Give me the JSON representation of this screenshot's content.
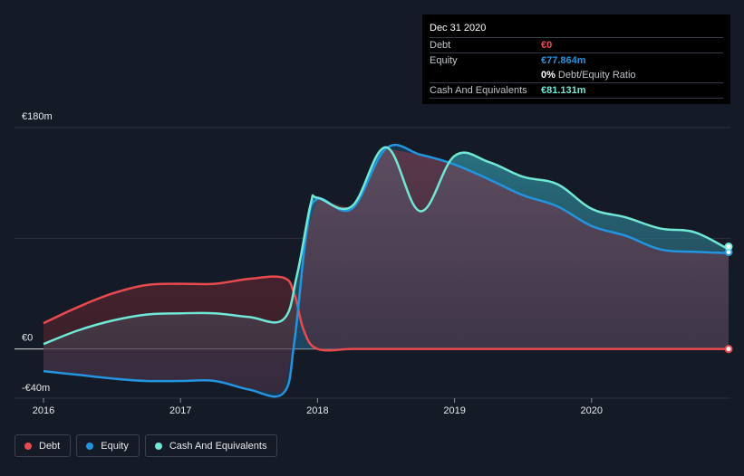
{
  "tooltip": {
    "date": "Dec 31 2020",
    "debt_label": "Debt",
    "debt_value": "€0",
    "equity_label": "Equity",
    "equity_value": "€77.864m",
    "ratio_value": "0%",
    "ratio_label": "Debt/Equity Ratio",
    "cash_label": "Cash And Equivalents",
    "cash_value": "€81.131m"
  },
  "legend": {
    "debt": "Debt",
    "equity": "Equity",
    "cash": "Cash And Equivalents"
  },
  "colors": {
    "debt": "#e84a4f",
    "equity": "#2394df",
    "cash": "#71e7d6",
    "background": "#151b26"
  },
  "chart_data": {
    "type": "area",
    "title": "",
    "xlabel": "",
    "ylabel": "",
    "ylim": [
      -40,
      180
    ],
    "y_ticks": [
      {
        "value": 180,
        "label": "€180m"
      },
      {
        "value": 0,
        "label": "€0"
      },
      {
        "value": -40,
        "label": "-€40m"
      }
    ],
    "x_ticks": [
      {
        "value": 2016,
        "label": "2016"
      },
      {
        "value": 2017,
        "label": "2017"
      },
      {
        "value": 2018,
        "label": "2018"
      },
      {
        "value": 2019,
        "label": "2019"
      },
      {
        "value": 2020,
        "label": "2020"
      }
    ],
    "xlim": [
      2015.78,
      2021.0
    ],
    "series": [
      {
        "name": "Debt",
        "key": "debt",
        "x": [
          2016.0,
          2016.25,
          2016.5,
          2016.75,
          2017.0,
          2017.25,
          2017.5,
          2017.75,
          2017.83,
          2017.9,
          2018.0,
          2018.25,
          2018.5,
          2018.75,
          2019.0,
          2019.25,
          2019.5,
          2019.75,
          2020.0,
          2020.25,
          2020.5,
          2020.75,
          2021.0
        ],
        "values": [
          21,
          34,
          45,
          52,
          53,
          53,
          57,
          58,
          45,
          15,
          0,
          0,
          0,
          0,
          0,
          0,
          0,
          0,
          0,
          0,
          0,
          0,
          0
        ]
      },
      {
        "name": "Equity",
        "key": "equity",
        "x": [
          2016.0,
          2016.25,
          2016.5,
          2016.75,
          2017.0,
          2017.25,
          2017.5,
          2017.75,
          2017.83,
          2017.92,
          2018.0,
          2018.25,
          2018.5,
          2018.75,
          2019.0,
          2019.25,
          2019.5,
          2019.75,
          2020.0,
          2020.25,
          2020.5,
          2020.75,
          2021.0
        ],
        "values": [
          -18,
          -21,
          -24,
          -26,
          -26,
          -26,
          -33,
          -36,
          5,
          95,
          122,
          114,
          163,
          158,
          150,
          138,
          125,
          116,
          100,
          92,
          81,
          79,
          78
        ]
      },
      {
        "name": "Cash And Equivalents",
        "key": "cash",
        "x": [
          2016.0,
          2016.25,
          2016.5,
          2016.75,
          2017.0,
          2017.25,
          2017.5,
          2017.75,
          2017.85,
          2017.95,
          2018.0,
          2018.25,
          2018.5,
          2018.75,
          2019.0,
          2019.25,
          2019.5,
          2019.75,
          2020.0,
          2020.25,
          2020.5,
          2020.75,
          2021.0
        ],
        "values": [
          4,
          15,
          23,
          28,
          29,
          29,
          26,
          24,
          60,
          118,
          123,
          116,
          164,
          112,
          157,
          152,
          140,
          134,
          114,
          107,
          98,
          95,
          81
        ]
      }
    ]
  }
}
